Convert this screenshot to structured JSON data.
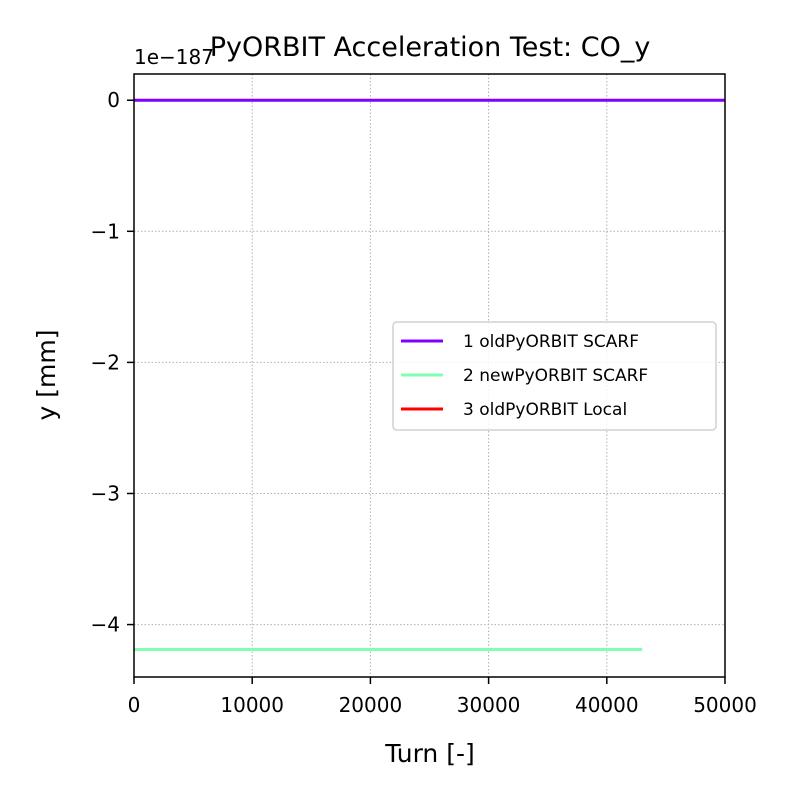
{
  "chart_data": {
    "type": "line",
    "title": "PyORBIT Acceleration Test: CO_y",
    "xlabel": "Turn [-]",
    "ylabel": "y [mm]",
    "offset_text": "1e−187",
    "xlim": [
      0,
      50000
    ],
    "ylim": [
      -4.4,
      0.2
    ],
    "x_ticks": [
      0,
      10000,
      20000,
      30000,
      40000,
      50000
    ],
    "x_tick_labels": [
      "0",
      "10000",
      "20000",
      "30000",
      "40000",
      "50000"
    ],
    "y_ticks": [
      0,
      -1,
      -2,
      -3,
      -4
    ],
    "y_tick_labels": [
      "0",
      "−1",
      "−2",
      "−3",
      "−4"
    ],
    "grid": true,
    "legend_position": "center-right",
    "series": [
      {
        "name": "1 oldPyORBIT SCARF",
        "color": "#8000ff",
        "x": [
          0,
          50000
        ],
        "y": [
          0,
          0
        ]
      },
      {
        "name": "2 newPyORBIT SCARF",
        "color": "#80ffb4",
        "x": [
          0,
          43000
        ],
        "y": [
          -4.19,
          -4.19
        ]
      },
      {
        "name": "3 oldPyORBIT Local",
        "color": "#ff0000",
        "x": [],
        "y": []
      }
    ]
  }
}
